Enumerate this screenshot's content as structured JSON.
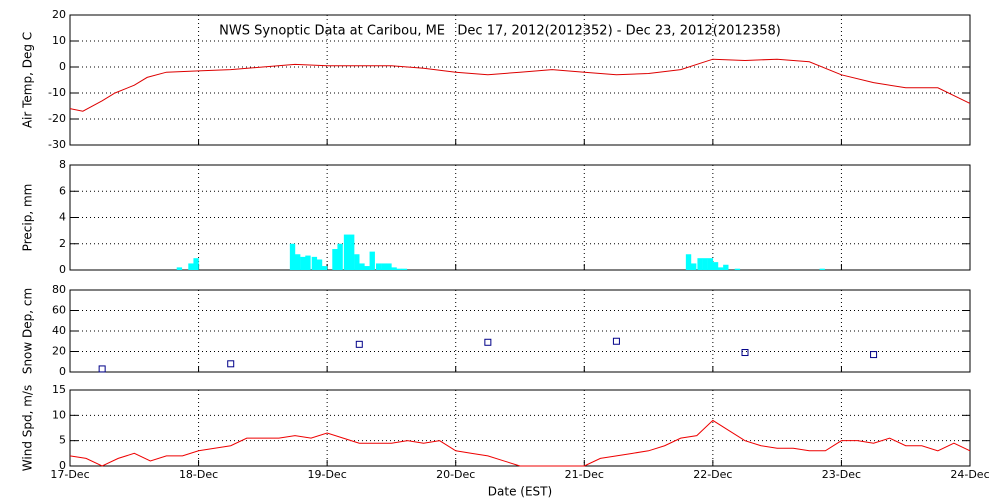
{
  "chart_data": [
    {
      "type": "line",
      "title": "NWS Synoptic Data at Caribou, ME   Dec 17, 2012(2012352) - Dec 23, 2012(2012358)",
      "y_label": "Air Temp, Deg C",
      "color": "#dd0000",
      "x": [
        0,
        0.1,
        0.25,
        0.35,
        0.5,
        0.6,
        0.75,
        1.0,
        1.25,
        1.5,
        1.75,
        2.0,
        2.25,
        2.5,
        2.75,
        3.0,
        3.25,
        3.5,
        3.75,
        4.0,
        4.25,
        4.5,
        4.75,
        5.0,
        5.25,
        5.5,
        5.75,
        6.0,
        6.25,
        6.5,
        6.75,
        7.0
      ],
      "values": [
        -16,
        -17,
        -13,
        -10,
        -7,
        -4,
        -2,
        -1.5,
        -1,
        0,
        1,
        0.5,
        0.5,
        0.5,
        -0.5,
        -2,
        -3,
        -2,
        -1,
        -2,
        -3,
        -2.5,
        -1,
        3,
        2.5,
        3,
        2,
        -3,
        -6,
        -8,
        -8,
        -14
      ],
      "xlim": [
        0,
        7
      ],
      "ylim": [
        -30,
        20
      ],
      "yticks": [
        -30,
        -20,
        -10,
        0,
        10,
        20
      ],
      "grid": true
    },
    {
      "type": "bar",
      "y_label": "Precip, mm",
      "color": "#00ffff",
      "x": [
        0.83,
        0.92,
        0.96,
        1.71,
        1.75,
        1.79,
        1.83,
        1.88,
        1.92,
        1.96,
        2.04,
        2.08,
        2.13,
        2.17,
        2.21,
        2.25,
        2.29,
        2.33,
        2.38,
        2.42,
        2.46,
        2.5,
        2.54,
        2.58,
        4.79,
        4.83,
        4.88,
        4.92,
        4.96,
        5.0,
        5.04,
        5.08,
        5.17,
        5.83
      ],
      "values": [
        0.2,
        0.5,
        0.9,
        2.0,
        1.2,
        1.0,
        1.1,
        1.0,
        0.8,
        0.3,
        1.6,
        2.0,
        2.7,
        2.7,
        1.2,
        0.5,
        0.3,
        1.4,
        0.5,
        0.5,
        0.5,
        0.2,
        0.1,
        0.1,
        1.2,
        0.5,
        0.9,
        0.9,
        0.9,
        0.6,
        0.2,
        0.4,
        0.1,
        0.1
      ],
      "xlim": [
        0,
        7
      ],
      "ylim": [
        0,
        8
      ],
      "yticks": [
        0,
        2,
        4,
        6,
        8
      ],
      "grid": true
    },
    {
      "type": "scatter",
      "y_label": "Snow Dep, cm",
      "color": "#000088",
      "x": [
        0.25,
        1.25,
        2.25,
        3.25,
        4.25,
        5.25,
        6.25
      ],
      "values": [
        3,
        8,
        27,
        29,
        30,
        19,
        17
      ],
      "xlim": [
        0,
        7
      ],
      "ylim": [
        0,
        80
      ],
      "yticks": [
        0,
        20,
        40,
        60,
        80
      ],
      "grid": true
    },
    {
      "type": "line",
      "y_label": "Wind Spd, m/s",
      "x_label": "Date (EST)",
      "color": "#ee0000",
      "x": [
        0,
        0.125,
        0.25,
        0.375,
        0.5,
        0.625,
        0.75,
        0.875,
        1.0,
        1.125,
        1.25,
        1.375,
        1.5,
        1.625,
        1.75,
        1.875,
        2.0,
        2.125,
        2.25,
        2.375,
        2.5,
        2.625,
        2.75,
        2.875,
        3.0,
        3.125,
        3.25,
        3.375,
        3.5,
        3.625,
        3.75,
        3.875,
        4.0,
        4.125,
        4.25,
        4.375,
        4.5,
        4.625,
        4.75,
        4.875,
        5.0,
        5.125,
        5.25,
        5.375,
        5.5,
        5.625,
        5.75,
        5.875,
        6.0,
        6.125,
        6.25,
        6.375,
        6.5,
        6.625,
        6.75,
        6.875,
        7.0
      ],
      "values": [
        2,
        1.5,
        0,
        1.5,
        2.5,
        1,
        2,
        2,
        3,
        3.5,
        4,
        5.5,
        5.5,
        5.5,
        6,
        5.5,
        6.5,
        5.5,
        4.5,
        4.5,
        4.5,
        5,
        4.5,
        5,
        3,
        2.5,
        2,
        1,
        0,
        0,
        0,
        0,
        0,
        1.5,
        2,
        2.5,
        3,
        4,
        5.5,
        6,
        9,
        7,
        5,
        4,
        3.5,
        3.5,
        3,
        3,
        5,
        5,
        4.5,
        5.5,
        4,
        4,
        3,
        4.5,
        3
      ],
      "xlim": [
        0,
        7
      ],
      "ylim": [
        0,
        15
      ],
      "yticks": [
        0,
        5,
        10,
        15
      ],
      "grid": true,
      "xticks": [
        {
          "value": 0,
          "label": "17-Dec"
        },
        {
          "value": 1,
          "label": "18-Dec"
        },
        {
          "value": 2,
          "label": "19-Dec"
        },
        {
          "value": 3,
          "label": "20-Dec"
        },
        {
          "value": 4,
          "label": "21-Dec"
        },
        {
          "value": 5,
          "label": "22-Dec"
        },
        {
          "value": 6,
          "label": "23-Dec"
        },
        {
          "value": 7,
          "label": "24-Dec"
        }
      ]
    }
  ]
}
